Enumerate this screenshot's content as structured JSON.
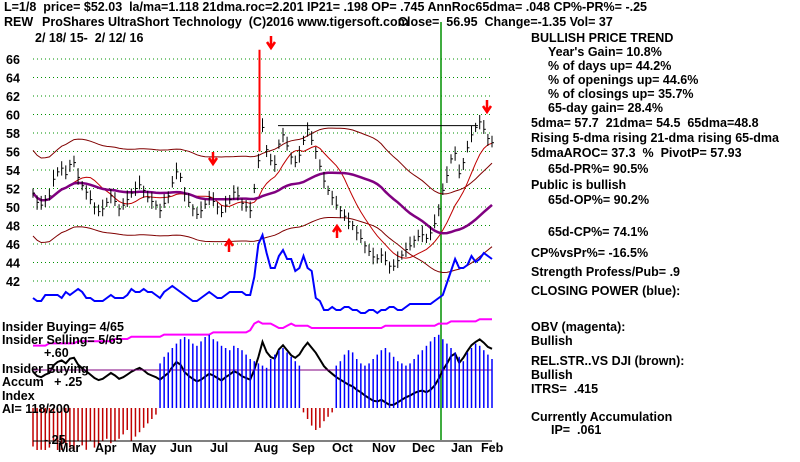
{
  "header": {
    "line1": "L=1/8  price= $52.03  la/ma=1.118 21dma.roc=2.201 IP21= .198 OP= .745 AnnRoc65dma= .048 CP%-PR%= -.25",
    "ticker": "REW",
    "line2": "ProShares UltraShort Technology  (C)2016 www.tigersoft.com",
    "close": "Close=  56.95  Change=-1.35 Vol= 37",
    "dates": "2/ 18/ 15-  2/ 12/ 16"
  },
  "right_panel": {
    "trend": "BULLISH PRICE TREND",
    "years_gain": "Year's Gain= 10.8%",
    "days_up": "% of days up= 44.2%",
    "openings_up": "% of openings up= 44.6%",
    "closings_up": "% of closings up= 35.7%",
    "gain65": "65-day gain= 28.4%",
    "dma": "5dma= 57.7  21dma= 54.5  65dma=48.8",
    "rising": "Rising 5-dma rising 21-dma rising 65-dma",
    "aroc": "5dmaAROC= 37.3  %  PivotP= 57.93",
    "pr65": "65d-PR%= 90.5%",
    "public": "Public is bullish",
    "op65": "65d-OP%= 90.2%",
    "cp65": "65d-CP%= 74.1%",
    "cpvspr": "CP%vsPr%= -16.5%",
    "strength": "Strength Profess/Pub= .9",
    "closing_power": "CLOSING POWER (blue):",
    "obv": "OBV (magenta):",
    "obv_state": "Bullish",
    "relstr": "REL.STR..VS DJI (brown):",
    "relstr_state": "Bullish",
    "itrs": "ITRS=  .415",
    "accum": "Currently Accumulation",
    "ip": "IP=  .061"
  },
  "left_labels": {
    "insider_buying": "Insider Buying= 4/65",
    "insider_selling": "Insider Selling= 5/65",
    "plus60": "+.60",
    "insider_buying2": "Insider Buying",
    "accum": "Accum   + .25",
    "index": "Index",
    "ai": "AI= 118/200",
    "minus25": "-.25"
  },
  "colors": {
    "price_bars": "#000000",
    "closing_power": "#0000ff",
    "obv": "#ff00ff",
    "relstr": "#000000",
    "ma_fast": "#c00000",
    "ma_slow": "#800080",
    "band": "#800000",
    "grid": "#009000",
    "accum_pos": "#0000ff",
    "accum_neg": "#c00000",
    "arrow": "#ff0000",
    "marker": "#009000"
  },
  "chart_data": {
    "type": "line",
    "x_ticks": [
      "Mar",
      "Apr",
      "May",
      "Jun",
      "Jul",
      "Aug",
      "Sep",
      "Oct",
      "Nov",
      "Dec",
      "Jan",
      "Feb"
    ],
    "ylim": [
      40,
      68
    ],
    "y_ticks": [
      42,
      44,
      46,
      48,
      50,
      52,
      54,
      56,
      58,
      60,
      62,
      64,
      66
    ],
    "grid": true,
    "price_close": [
      51.5,
      50.5,
      50.2,
      50.8,
      51.2,
      53.0,
      53.8,
      54.2,
      53.5,
      54.6,
      54.8,
      53.2,
      52.3,
      51.6,
      50.8,
      50.0,
      49.5,
      49.8,
      50.5,
      51.2,
      50.6,
      49.8,
      50.2,
      50.8,
      51.5,
      52.0,
      52.4,
      51.8,
      51.0,
      50.6,
      50.2,
      49.6,
      50.4,
      51.2,
      52.6,
      53.8,
      53.2,
      51.4,
      50.5,
      49.8,
      49.2,
      49.6,
      50.3,
      51.0,
      50.6,
      50.0,
      49.4,
      50.2,
      50.8,
      51.6,
      51.2,
      50.4,
      50.0,
      49.6,
      52.0,
      55.0,
      58.6,
      56.2,
      55.0,
      54.6,
      56.8,
      57.8,
      56.6,
      55.4,
      54.8,
      55.6,
      57.2,
      58.4,
      57.2,
      56.0,
      54.4,
      52.8,
      51.8,
      51.0,
      50.2,
      49.6,
      49.0,
      48.4,
      48.0,
      47.2,
      46.6,
      45.8,
      45.2,
      44.6,
      44.4,
      44.8,
      44.2,
      43.6,
      43.6,
      44.2,
      44.8,
      45.4,
      45.8,
      46.4,
      46.8,
      47.0,
      46.6,
      47.2,
      48.2,
      49.8,
      51.8,
      53.4,
      55.2,
      55.8,
      53.6,
      54.8,
      56.4,
      57.8,
      58.6,
      59.2,
      58.4,
      57.4,
      56.95
    ],
    "closing_power": [
      34,
      33,
      33,
      35,
      35,
      35,
      35,
      34,
      36,
      35,
      36,
      37,
      36,
      34,
      34,
      33,
      33,
      33,
      34,
      35,
      34,
      34,
      34,
      35,
      37,
      36,
      36,
      37,
      36,
      36,
      35,
      34,
      36,
      37,
      38,
      37,
      36,
      35,
      34,
      33,
      33,
      34,
      35,
      36,
      35,
      34,
      34,
      35,
      36,
      36,
      36,
      36,
      35,
      35,
      41,
      52,
      55,
      49,
      44,
      44,
      48,
      50,
      47,
      47,
      43,
      44,
      48,
      44,
      43,
      34,
      33,
      30,
      30,
      31,
      30,
      30,
      31,
      31,
      30,
      30,
      29,
      29,
      30,
      30,
      29,
      30,
      30,
      31,
      31,
      30,
      30,
      31,
      32,
      32,
      32,
      32,
      32,
      32,
      33,
      34,
      35,
      39,
      43,
      47,
      44,
      44,
      45,
      48,
      46,
      47,
      49,
      48,
      47
    ],
    "obv": [
      20,
      20,
      20,
      20,
      21,
      21,
      21,
      21,
      21,
      21,
      21,
      22,
      22,
      22,
      22,
      22,
      22,
      22,
      22,
      22,
      23,
      23,
      23,
      23,
      24,
      24,
      24,
      24,
      24,
      24,
      24,
      24,
      25,
      25,
      25,
      25,
      25,
      25,
      25,
      25,
      25,
      25,
      25,
      25,
      26,
      26,
      26,
      26,
      26,
      26,
      26,
      26,
      26,
      27,
      30,
      31,
      30,
      30,
      30,
      29,
      28,
      28,
      29,
      30,
      29,
      29,
      29,
      29,
      28,
      28,
      28,
      28,
      28,
      28,
      28,
      28,
      28,
      28,
      28,
      28,
      28,
      28,
      28,
      28,
      28,
      28,
      29,
      29,
      29,
      29,
      29,
      29,
      29,
      29,
      29,
      29,
      29,
      29,
      29,
      30,
      30,
      30,
      31,
      31,
      31,
      31,
      31,
      31,
      31,
      32,
      32,
      32,
      32
    ],
    "accumulation_index": [
      -0.35,
      -0.4,
      -0.38,
      -0.42,
      -0.36,
      -0.3,
      -0.4,
      -0.38,
      -0.33,
      -0.36,
      -0.42,
      -0.3,
      -0.34,
      -0.38,
      -0.3,
      -0.36,
      -0.34,
      -0.3,
      -0.28,
      -0.32,
      -0.3,
      -0.28,
      -0.24,
      -0.2,
      -0.3,
      -0.26,
      -0.22,
      -0.18,
      -0.14,
      -0.1,
      -0.06,
      0.06,
      0.12,
      0.16,
      0.2,
      0.24,
      0.28,
      0.3,
      0.28,
      0.24,
      0.22,
      0.26,
      0.3,
      0.32,
      0.28,
      0.26,
      0.22,
      0.2,
      0.18,
      0.22,
      0.2,
      0.18,
      0.14,
      0.1,
      0.08,
      0.06,
      0.04,
      0.02,
      0.1,
      0.14,
      0.18,
      0.2,
      0.16,
      0.12,
      0.08,
      0.04,
      -0.04,
      -0.1,
      -0.16,
      -0.2,
      -0.18,
      -0.12,
      -0.08,
      -0.04,
      0.04,
      0.08,
      0.14,
      0.18,
      0.16,
      0.1,
      0.06,
      0.04,
      0.06,
      0.1,
      0.14,
      0.18,
      0.2,
      0.16,
      0.12,
      0.08,
      0.06,
      0.04,
      0.06,
      0.1,
      0.14,
      0.18,
      0.22,
      0.26,
      0.3,
      0.32,
      0.28,
      0.24,
      0.2,
      0.16,
      0.12,
      0.08,
      0.16,
      0.2,
      0.24,
      0.22,
      0.18,
      0.14,
      0.1
    ]
  }
}
